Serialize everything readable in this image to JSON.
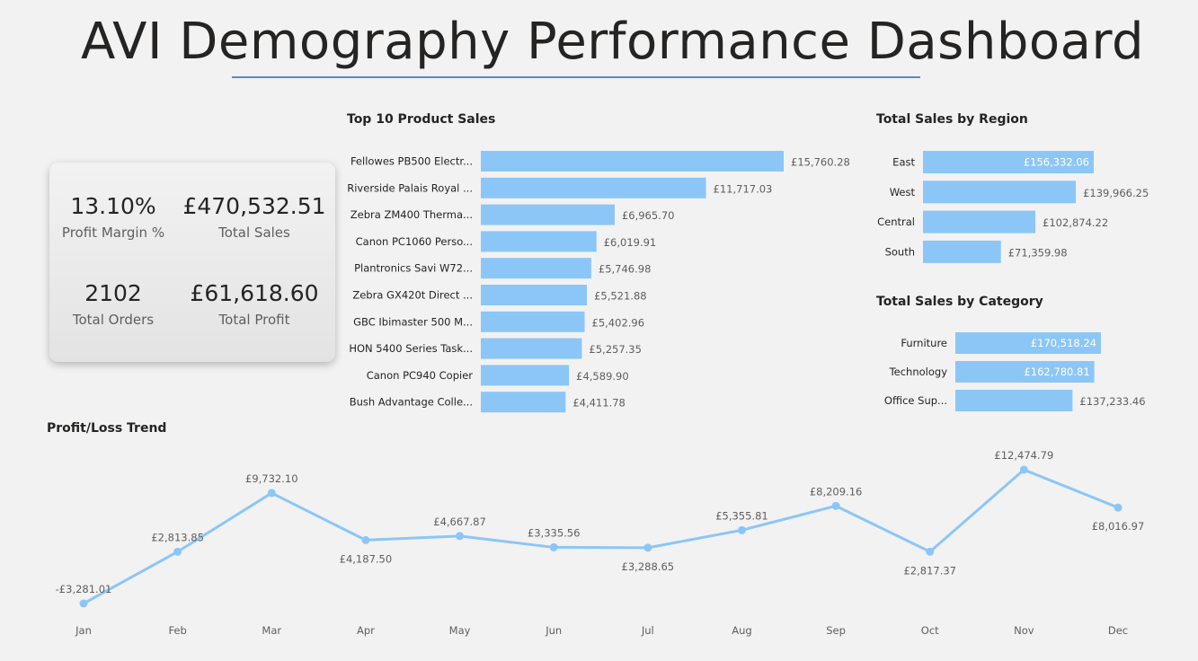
{
  "page": {
    "title": "AVI Demography Performance Dashboard"
  },
  "kpis": {
    "profit_margin": {
      "value": "13.10%",
      "label": "Profit Margin %"
    },
    "total_sales": {
      "value": "£470,532.51",
      "label": "Total Sales"
    },
    "total_orders": {
      "value": "2102",
      "label": "Total Orders"
    },
    "total_profit": {
      "value": "£61,618.60",
      "label": "Total Profit"
    }
  },
  "colors": {
    "bar": "#8cc6f6",
    "line": "#8cc6f6",
    "text": "#252423",
    "muted_text": "#605e5c",
    "accent_underline": "#5b8bc2"
  },
  "chart_data": [
    {
      "id": "top-products",
      "type": "bar",
      "orientation": "horizontal",
      "title": "Top 10 Product Sales",
      "categories": [
        "Fellowes PB500 Electr...",
        "Riverside Palais Royal ...",
        "Zebra ZM400 Therma...",
        "Canon PC1060 Perso...",
        "Plantronics Savi W72...",
        "Zebra GX420t Direct ...",
        "GBC Ibimaster 500 M...",
        "HON 5400 Series Task...",
        "Canon PC940 Copier",
        "Bush Advantage Colle..."
      ],
      "values": [
        15760.28,
        11717.03,
        6965.7,
        6019.91,
        5746.98,
        5521.88,
        5402.96,
        5257.35,
        4589.9,
        4411.78
      ],
      "labels": [
        "£15,760.28",
        "£11,717.03",
        "£6,965.70",
        "£6,019.91",
        "£5,746.98",
        "£5,521.88",
        "£5,402.96",
        "£5,257.35",
        "£4,589.90",
        "£4,411.78"
      ],
      "xlim": [
        0,
        15760.28
      ]
    },
    {
      "id": "sales-region",
      "type": "bar",
      "orientation": "horizontal",
      "title": "Total Sales by Region",
      "categories": [
        "East",
        "West",
        "Central",
        "South"
      ],
      "values": [
        156332.06,
        139966.25,
        102874.22,
        71359.98
      ],
      "labels": [
        "£156,332.06",
        "£139,966.25",
        "£102,874.22",
        "£71,359.98"
      ],
      "xlim": [
        0,
        156332.06
      ]
    },
    {
      "id": "sales-category",
      "type": "bar",
      "orientation": "horizontal",
      "title": "Total Sales by Category",
      "categories": [
        "Furniture",
        "Technology",
        "Office Sup..."
      ],
      "values": [
        170518.24,
        162780.81,
        137233.46
      ],
      "labels": [
        "£170,518.24",
        "£162,780.81",
        "£137,233.46"
      ],
      "xlim": [
        0,
        170518.24
      ]
    },
    {
      "id": "profit-trend",
      "type": "line",
      "title": "Profit/Loss Trend",
      "categories": [
        "Jan",
        "Feb",
        "Mar",
        "Apr",
        "May",
        "Jun",
        "Jul",
        "Aug",
        "Sep",
        "Oct",
        "Nov",
        "Dec"
      ],
      "values": [
        -3281.01,
        2813.85,
        9732.1,
        4187.5,
        4667.87,
        3335.56,
        3288.65,
        5355.81,
        8209.16,
        2817.37,
        12474.79,
        8016.97
      ],
      "labels": [
        "-£3,281.01",
        "£2,813.85",
        "£9,732.10",
        "£4,187.50",
        "£4,667.87",
        "£3,335.56",
        "£3,288.65",
        "£5,355.81",
        "£8,209.16",
        "£2,817.37",
        "£12,474.79",
        "£8,016.97"
      ],
      "ylim": [
        -3281.01,
        12474.79
      ]
    }
  ]
}
